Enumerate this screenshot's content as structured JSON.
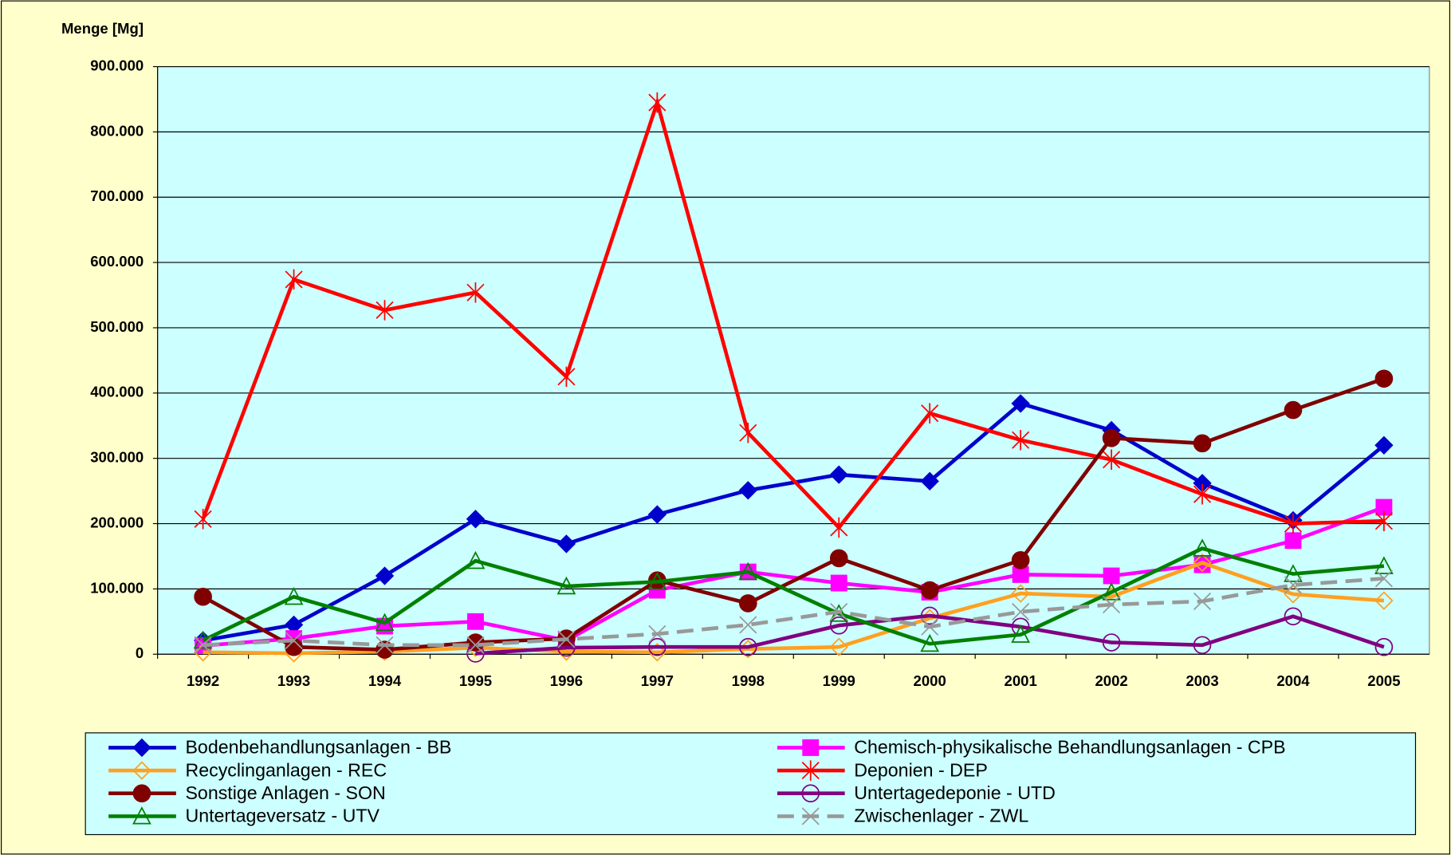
{
  "chart_data": {
    "type": "line",
    "y_label": "Menge [Mg]",
    "categories": [
      "1992",
      "1993",
      "1994",
      "1995",
      "1996",
      "1997",
      "1998",
      "1999",
      "2000",
      "2001",
      "2002",
      "2003",
      "2004",
      "2005"
    ],
    "ylim": [
      0,
      900000
    ],
    "yticks": [
      0,
      {
        "value": 100000,
        "label": "100.000"
      },
      {
        "value": 200000,
        "label": "200.000"
      },
      {
        "value": 300000,
        "label": "300.000"
      },
      {
        "value": 400000,
        "label": "400.000"
      },
      {
        "value": 500000,
        "label": "500.000"
      },
      {
        "value": 600000,
        "label": "600.000"
      },
      {
        "value": 700000,
        "label": "700.000"
      },
      {
        "value": 800000,
        "label": "800.000"
      },
      {
        "value": 900000,
        "label": "900.000"
      }
    ],
    "grid": true,
    "series": [
      {
        "name": "Bodenbehandlungsanlagen - BB",
        "color": "#0000cc",
        "marker": "diamond",
        "values": [
          21000,
          45000,
          120000,
          207000,
          169000,
          214000,
          251000,
          275000,
          265000,
          384000,
          343000,
          262000,
          205000,
          320000
        ]
      },
      {
        "name": "Chemisch-physikalische Behandlungsanlagen - CPB",
        "color": "#ff00ff",
        "marker": "square",
        "values": [
          13000,
          24000,
          43000,
          50000,
          21000,
          98000,
          126000,
          109000,
          95000,
          122000,
          120000,
          137000,
          174000,
          225000
        ]
      },
      {
        "name": "Recyclinganlagen - REC",
        "color": "#ffa020",
        "marker": "open-diamond",
        "values": [
          3000,
          1500,
          4000,
          10000,
          4000,
          3000,
          8000,
          11000,
          55000,
          93000,
          88000,
          140000,
          92000,
          82000
        ]
      },
      {
        "name": "Deponien - DEP",
        "color": "#ff0000",
        "marker": "star",
        "values": [
          207000,
          574000,
          527000,
          554000,
          425000,
          845000,
          339000,
          194000,
          369000,
          328000,
          298000,
          245000,
          200000,
          204000
        ]
      },
      {
        "name": "Sonstige Anlagen - SON",
        "color": "#800000",
        "marker": "circle",
        "values": [
          88000,
          11000,
          7000,
          18000,
          24000,
          113000,
          78000,
          147000,
          98000,
          144000,
          331000,
          323000,
          374000,
          422000
        ]
      },
      {
        "name": "Untertagedeponie - UTD",
        "color": "#800080",
        "marker": "open-circle",
        "values": [
          null,
          null,
          null,
          1000,
          10000,
          11000,
          11000,
          44000,
          59000,
          42000,
          18000,
          14000,
          58000,
          11000
        ]
      },
      {
        "name": "Untertageversatz - UTV",
        "color": "#008000",
        "marker": "open-triangle",
        "values": [
          21000,
          88000,
          48000,
          143000,
          104000,
          111000,
          126000,
          62000,
          16000,
          30000,
          95000,
          162000,
          123000,
          135000
        ]
      },
      {
        "name": "Zwischenlager - ZWL",
        "color": "#999999",
        "marker": "x",
        "dashed": true,
        "values": [
          14000,
          21000,
          14000,
          14000,
          23000,
          31000,
          45000,
          65000,
          42000,
          65000,
          76000,
          81000,
          106000,
          116000
        ]
      }
    ]
  }
}
